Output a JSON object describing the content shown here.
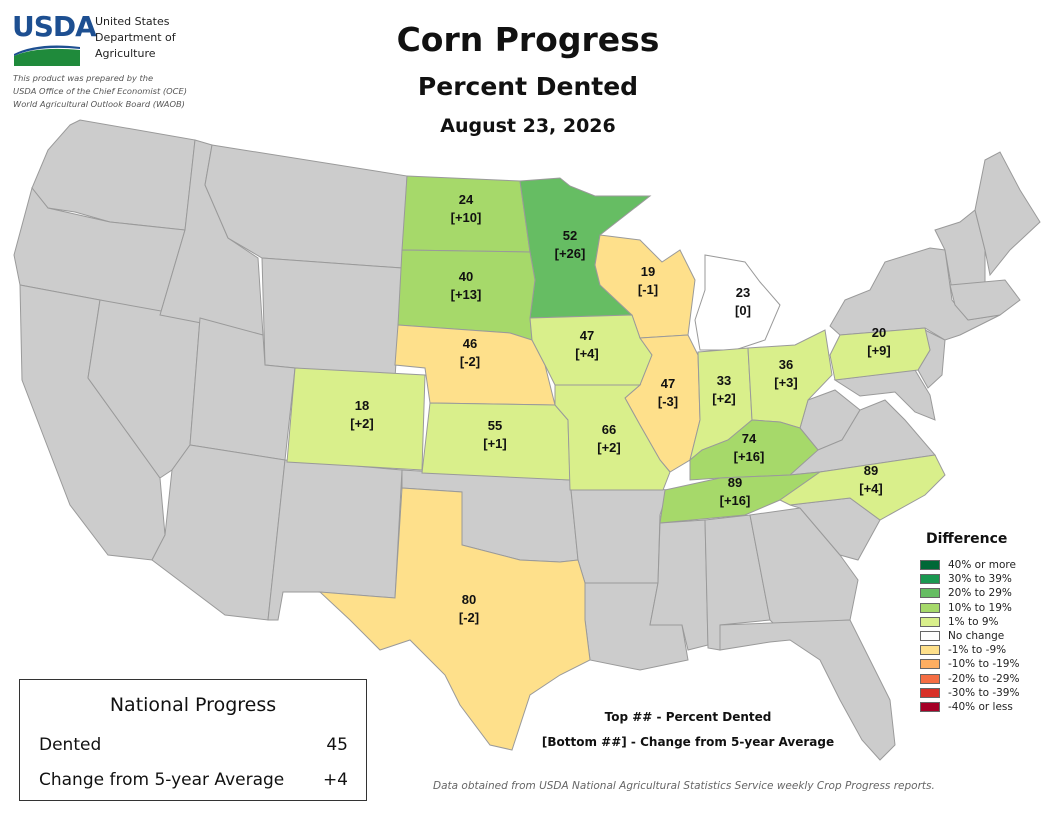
{
  "header": {
    "logo_text": "USDA",
    "department_lines": [
      "United States",
      "Department of",
      "Agriculture"
    ],
    "prepared_by_lines": [
      "This product was prepared by the",
      "USDA Office of the Chief Economist (OCE)",
      "World Agricultural Outlook Board (WAOB)"
    ],
    "title": "Corn Progress",
    "subtitle": "Percent Dented",
    "date": "August 23, 2026"
  },
  "colors": {
    "no_data": "#cccccc",
    "state_border": "#9a9a9a",
    "no_change": "#ffffff",
    "pos_1_9": "#d9ef8b",
    "pos_10_19": "#a6d96a",
    "pos_20_29": "#66bd63",
    "neg_1_9": "#fee08b"
  },
  "states": [
    {
      "name": "ND",
      "value": "24",
      "change": "[+10]",
      "color": "#a6d96a"
    },
    {
      "name": "MN",
      "value": "52",
      "change": "[+26]",
      "color": "#66bd63"
    },
    {
      "name": "SD",
      "value": "40",
      "change": "[+13]",
      "color": "#a6d96a"
    },
    {
      "name": "WI",
      "value": "19",
      "change": "[-1]",
      "color": "#fee08b"
    },
    {
      "name": "MI",
      "value": "23",
      "change": "[0]",
      "color": "#ffffff"
    },
    {
      "name": "NE",
      "value": "46",
      "change": "[-2]",
      "color": "#fee08b"
    },
    {
      "name": "IA",
      "value": "47",
      "change": "[+4]",
      "color": "#d9ef8b"
    },
    {
      "name": "IL",
      "value": "47",
      "change": "[-3]",
      "color": "#fee08b"
    },
    {
      "name": "IN",
      "value": "33",
      "change": "[+2]",
      "color": "#d9ef8b"
    },
    {
      "name": "OH",
      "value": "36",
      "change": "[+3]",
      "color": "#d9ef8b"
    },
    {
      "name": "PA",
      "value": "20",
      "change": "[+9]",
      "color": "#d9ef8b"
    },
    {
      "name": "CO",
      "value": "18",
      "change": "[+2]",
      "color": "#d9ef8b"
    },
    {
      "name": "KS",
      "value": "55",
      "change": "[+1]",
      "color": "#d9ef8b"
    },
    {
      "name": "MO",
      "value": "66",
      "change": "[+2]",
      "color": "#d9ef8b"
    },
    {
      "name": "KY",
      "value": "74",
      "change": "[+16]",
      "color": "#a6d96a"
    },
    {
      "name": "TN",
      "value": "89",
      "change": "[+16]",
      "color": "#a6d96a"
    },
    {
      "name": "NC",
      "value": "89",
      "change": "[+4]",
      "color": "#d9ef8b"
    },
    {
      "name": "TX",
      "value": "80",
      "change": "[-2]",
      "color": "#fee08b"
    }
  ],
  "legend": {
    "title": "Difference",
    "items": [
      {
        "label": "40% or more",
        "color": "#006837"
      },
      {
        "label": "30% to 39%",
        "color": "#1a9850"
      },
      {
        "label": "20% to 29%",
        "color": "#66bd63"
      },
      {
        "label": "10% to 19%",
        "color": "#a6d96a"
      },
      {
        "label": "1% to 9%",
        "color": "#d9ef8b"
      },
      {
        "label": "No change",
        "color": "#ffffff"
      },
      {
        "label": "-1% to -9%",
        "color": "#fee08b"
      },
      {
        "label": "-10% to -19%",
        "color": "#fdae61"
      },
      {
        "label": "-20% to -29%",
        "color": "#f46d43"
      },
      {
        "label": "-30% to -39%",
        "color": "#d73027"
      },
      {
        "label": "-40% or less",
        "color": "#a50026"
      }
    ]
  },
  "key": {
    "top_line": "Top ## - Percent Dented",
    "bottom_line": "[Bottom ##] - Change from 5-year Average"
  },
  "national": {
    "title": "National Progress",
    "dented_label": "Dented",
    "dented_value": "45",
    "change_label": "Change from 5-year Average",
    "change_value": "+4"
  },
  "source": "Data obtained from USDA National Agricultural Statistics Service weekly Crop Progress reports."
}
